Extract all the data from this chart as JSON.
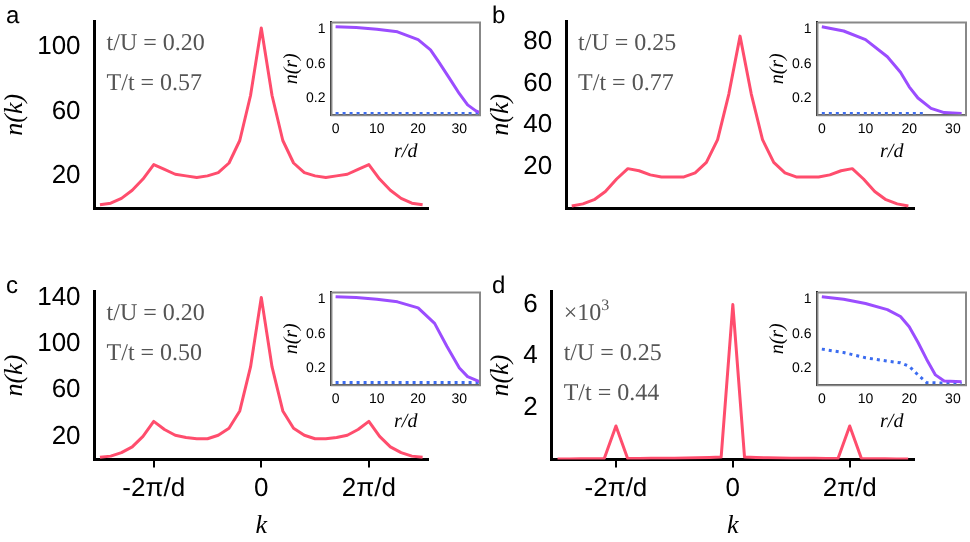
{
  "chart_data": [
    {
      "type": "line",
      "title": "a",
      "ylabel": "n(k)",
      "annotations": [
        "t/U = 0.20",
        "T/t = 0.57"
      ],
      "tick_labels": "y",
      "categories": [
        null,
        null,
        null,
        null,
        null,
        null,
        null,
        null,
        null,
        null,
        null,
        null,
        null,
        null,
        null,
        null,
        null,
        null,
        null,
        null,
        null,
        null,
        null,
        null,
        null,
        null,
        null,
        null,
        null,
        null,
        null
      ],
      "ylim": [
        0,
        116
      ],
      "yticks": [
        20,
        60,
        100
      ],
      "grid": false,
      "legend": false,
      "marker": "none",
      "line_style": "solid",
      "series": [
        {
          "color": "#ff4d6d",
          "values": [
            2,
            3,
            6,
            11,
            18,
            27,
            24,
            21,
            20,
            19,
            20,
            22,
            28,
            42,
            70,
            112,
            70,
            42,
            28,
            22,
            20,
            19,
            20,
            21,
            24,
            27,
            18,
            11,
            6,
            3,
            2
          ]
        }
      ]
    },
    {
      "type": "line",
      "xlabel": "r/d",
      "ylabel": "n(r)",
      "xlim": [
        -1,
        35
      ],
      "ylim": [
        0,
        1.08
      ],
      "xticks": [
        0,
        10,
        20,
        30
      ],
      "yticks": [
        0.2,
        0.6,
        1.0
      ],
      "grid": false,
      "legend": false,
      "marker": "none",
      "series": [
        {
          "color": "#9b4dff",
          "line_style": "solid",
          "x": [
            0,
            5,
            10,
            15,
            20,
            23,
            25,
            28,
            30,
            32,
            34,
            35
          ],
          "values": [
            1.03,
            1.02,
            1.0,
            0.97,
            0.88,
            0.76,
            0.62,
            0.4,
            0.25,
            0.12,
            0.05,
            0.03
          ]
        },
        {
          "color": "#3b6cf0",
          "line_style": "dotted",
          "x": [
            0,
            35
          ],
          "values": [
            0.02,
            0.02
          ]
        }
      ]
    },
    {
      "type": "line",
      "title": "b",
      "ylabel": "n(k)",
      "annotations": [
        "t/U = 0.25",
        "T/t = 0.77"
      ],
      "tick_labels": "y",
      "categories": [
        null,
        null,
        null,
        null,
        null,
        null,
        null,
        null,
        null,
        null,
        null,
        null,
        null,
        null,
        null,
        null,
        null,
        null,
        null,
        null,
        null,
        null,
        null,
        null,
        null,
        null,
        null,
        null,
        null,
        null,
        null
      ],
      "ylim": [
        0,
        90
      ],
      "yticks": [
        20,
        40,
        60,
        80
      ],
      "grid": false,
      "legend": false,
      "marker": "none",
      "line_style": "solid",
      "series": [
        {
          "color": "#ff4d6d",
          "values": [
            1,
            2,
            4,
            8,
            14,
            19,
            18,
            16,
            15,
            15,
            15,
            17,
            22,
            33,
            55,
            83,
            55,
            33,
            22,
            17,
            15,
            15,
            15,
            16,
            18,
            19,
            14,
            8,
            4,
            2,
            1
          ]
        }
      ]
    },
    {
      "type": "line",
      "xlabel": "r/d",
      "ylabel": "n(r)",
      "xlim": [
        -1,
        33
      ],
      "ylim": [
        0,
        1.08
      ],
      "xticks": [
        0,
        10,
        20,
        30
      ],
      "yticks": [
        0.2,
        0.6,
        1.0
      ],
      "grid": false,
      "legend": false,
      "marker": "none",
      "series": [
        {
          "color": "#9b4dff",
          "line_style": "solid",
          "x": [
            0,
            5,
            10,
            15,
            18,
            20,
            22,
            25,
            28,
            32
          ],
          "values": [
            1.03,
            0.98,
            0.88,
            0.68,
            0.5,
            0.33,
            0.2,
            0.08,
            0.03,
            0.02
          ]
        },
        {
          "color": "#3b6cf0",
          "line_style": "dotted",
          "x": [
            0,
            24
          ],
          "values": [
            0.02,
            0.02
          ]
        }
      ]
    },
    {
      "type": "line",
      "title": "c",
      "xlabel": "k",
      "ylabel": "n(k)",
      "annotations": [
        "t/U = 0.20",
        "T/t = 0.50"
      ],
      "categories": [
        null,
        null,
        null,
        null,
        null,
        "-2π/d",
        null,
        null,
        null,
        null,
        null,
        null,
        null,
        null,
        null,
        "0",
        null,
        null,
        null,
        null,
        null,
        null,
        null,
        null,
        null,
        "2π/d",
        null,
        null,
        null,
        null,
        null
      ],
      "ylim": [
        0,
        145
      ],
      "yticks": [
        20,
        60,
        100,
        140
      ],
      "grid": false,
      "legend": false,
      "marker": "none",
      "line_style": "solid",
      "series": [
        {
          "color": "#ff4d6d",
          "values": [
            2,
            3,
            6,
            11,
            20,
            33,
            26,
            21,
            19,
            18,
            18,
            21,
            27,
            42,
            80,
            140,
            80,
            42,
            27,
            21,
            18,
            18,
            19,
            21,
            26,
            33,
            20,
            11,
            6,
            3,
            2
          ]
        }
      ]
    },
    {
      "type": "line",
      "xlabel": "r/d",
      "ylabel": "n(r)",
      "xlim": [
        -1,
        35
      ],
      "ylim": [
        0,
        1.08
      ],
      "xticks": [
        0,
        10,
        20,
        30
      ],
      "yticks": [
        0.2,
        0.6,
        1.0
      ],
      "grid": false,
      "legend": false,
      "marker": "none",
      "series": [
        {
          "color": "#9b4dff",
          "line_style": "solid",
          "x": [
            0,
            5,
            10,
            15,
            20,
            24,
            27,
            30,
            32,
            35
          ],
          "values": [
            1.03,
            1.02,
            1.0,
            0.97,
            0.9,
            0.72,
            0.45,
            0.2,
            0.1,
            0.04
          ]
        },
        {
          "color": "#3b6cf0",
          "line_style": "dotted",
          "x": [
            0,
            35
          ],
          "values": [
            0.03,
            0.03
          ]
        }
      ]
    },
    {
      "type": "line",
      "title": "d",
      "xlabel": "k",
      "ylabel": "n(k)",
      "annotations": [
        "×10$^{3}$",
        "t/U = 0.25",
        "T/t = 0.44"
      ],
      "categories": [
        null,
        null,
        null,
        null,
        null,
        "-2π/d",
        null,
        null,
        null,
        null,
        null,
        null,
        null,
        null,
        null,
        "0",
        null,
        null,
        null,
        null,
        null,
        null,
        null,
        null,
        null,
        "2π/d",
        null,
        null,
        null,
        null,
        null
      ],
      "ylim": [
        0,
        6.5
      ],
      "yticks": [
        2,
        4,
        6
      ],
      "grid": false,
      "legend": false,
      "marker": "none",
      "line_style": "solid",
      "series": [
        {
          "color": "#ff4d6d",
          "values": [
            0.02,
            0.02,
            0.03,
            0.03,
            0.04,
            1.3,
            0.04,
            0.04,
            0.05,
            0.05,
            0.05,
            0.06,
            0.07,
            0.08,
            0.1,
            6,
            0.1,
            0.08,
            0.07,
            0.06,
            0.05,
            0.05,
            0.05,
            0.04,
            0.04,
            1.3,
            0.04,
            0.03,
            0.03,
            0.02,
            0.02
          ]
        }
      ]
    },
    {
      "type": "line",
      "xlabel": "r/d",
      "ylabel": "n(r)",
      "xlim": [
        -1,
        33
      ],
      "ylim": [
        0,
        1.08
      ],
      "xticks": [
        0,
        10,
        20,
        30
      ],
      "yticks": [
        0.2,
        0.6,
        1.0
      ],
      "grid": false,
      "legend": false,
      "marker": "none",
      "series": [
        {
          "color": "#9b4dff",
          "line_style": "solid",
          "x": [
            0,
            5,
            10,
            15,
            18,
            20,
            22,
            24,
            26,
            28,
            32
          ],
          "values": [
            1.03,
            1.0,
            0.95,
            0.88,
            0.8,
            0.68,
            0.5,
            0.3,
            0.12,
            0.05,
            0.04
          ]
        },
        {
          "color": "#3b6cf0",
          "line_style": "dotted",
          "x": [
            0,
            5,
            10,
            15,
            18,
            20,
            22,
            24,
            32
          ],
          "values": [
            0.42,
            0.38,
            0.32,
            0.28,
            0.26,
            0.22,
            0.12,
            0.03,
            0.02
          ]
        }
      ]
    }
  ]
}
